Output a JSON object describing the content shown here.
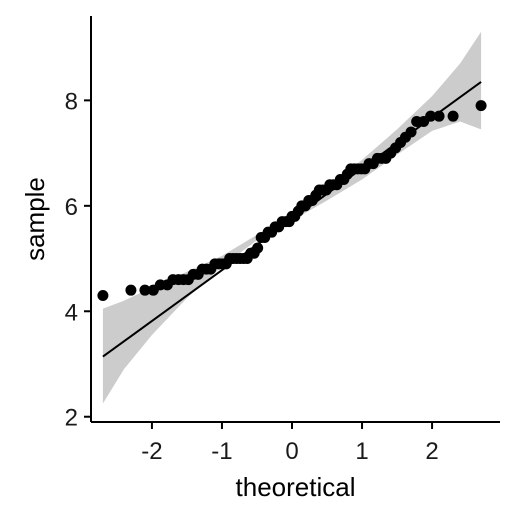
{
  "chart_data": {
    "type": "scatter",
    "subtype": "qq-plot",
    "xlabel": "theoretical",
    "ylabel": "sample",
    "xlim": [
      -2.87,
      2.97
    ],
    "ylim": [
      1.9,
      9.6
    ],
    "xticks": [
      -2,
      -1,
      0,
      1,
      2
    ],
    "xtick_labels": [
      "-2",
      "-1",
      "0",
      "1",
      "2"
    ],
    "yticks": [
      2,
      4,
      6,
      8
    ],
    "ytick_labels": [
      "2",
      "4",
      "6",
      "8"
    ],
    "grid": false,
    "legend": "none",
    "colors": {
      "points": "#000000",
      "line": "#000000",
      "band": "#cccccc",
      "axis": "#000000"
    },
    "reference_line": {
      "x": [
        -2.7,
        2.7
      ],
      "y": [
        3.14,
        8.35
      ]
    },
    "confidence_band": {
      "x": [
        -2.7,
        -2.4,
        -2.0,
        -1.5,
        -1.0,
        -0.5,
        0.0,
        0.5,
        1.0,
        1.5,
        2.0,
        2.4,
        2.7
      ],
      "lower": [
        2.25,
        2.9,
        3.55,
        4.25,
        4.85,
        5.35,
        5.72,
        6.1,
        6.5,
        6.97,
        7.42,
        7.6,
        7.45
      ],
      "upper": [
        4.05,
        4.2,
        4.45,
        4.75,
        5.05,
        5.45,
        5.88,
        6.35,
        6.87,
        7.45,
        8.08,
        8.7,
        9.3
      ]
    },
    "x": [
      -2.7,
      -2.3,
      -2.1,
      -1.98,
      -1.88,
      -1.78,
      -1.7,
      -1.62,
      -1.55,
      -1.48,
      -1.41,
      -1.34,
      -1.28,
      -1.22,
      -1.16,
      -1.1,
      -1.04,
      -0.99,
      -0.94,
      -0.89,
      -0.84,
      -0.79,
      -0.74,
      -0.69,
      -0.64,
      -0.59,
      -0.54,
      -0.49,
      -0.44,
      -0.39,
      -0.34,
      -0.29,
      -0.24,
      -0.19,
      -0.14,
      -0.09,
      -0.04,
      0.0,
      0.04,
      0.09,
      0.14,
      0.19,
      0.24,
      0.29,
      0.34,
      0.39,
      0.44,
      0.49,
      0.54,
      0.59,
      0.64,
      0.69,
      0.74,
      0.79,
      0.84,
      0.89,
      0.94,
      0.99,
      1.04,
      1.1,
      1.16,
      1.22,
      1.28,
      1.34,
      1.41,
      1.48,
      1.55,
      1.62,
      1.7,
      1.78,
      1.88,
      1.98,
      2.1,
      2.3,
      2.7
    ],
    "y": [
      4.3,
      4.4,
      4.4,
      4.4,
      4.5,
      4.5,
      4.6,
      4.6,
      4.6,
      4.6,
      4.7,
      4.7,
      4.8,
      4.8,
      4.8,
      4.9,
      4.9,
      4.9,
      4.9,
      5.0,
      5.0,
      5.0,
      5.0,
      5.0,
      5.0,
      5.1,
      5.1,
      5.2,
      5.4,
      5.4,
      5.5,
      5.5,
      5.6,
      5.6,
      5.7,
      5.7,
      5.7,
      5.8,
      5.8,
      5.9,
      6.0,
      6.0,
      6.1,
      6.1,
      6.2,
      6.3,
      6.3,
      6.3,
      6.4,
      6.4,
      6.4,
      6.5,
      6.5,
      6.6,
      6.7,
      6.7,
      6.7,
      6.7,
      6.7,
      6.8,
      6.8,
      6.9,
      6.9,
      6.9,
      7.0,
      7.1,
      7.2,
      7.3,
      7.4,
      7.6,
      7.6,
      7.7,
      7.7,
      7.7,
      7.9
    ]
  }
}
